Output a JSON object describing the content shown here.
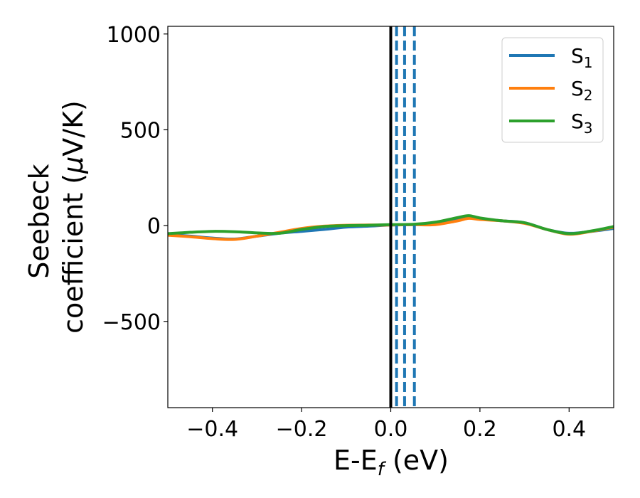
{
  "chart_data": {
    "type": "line",
    "title": "",
    "xlabel": {
      "main": "E-E",
      "sub": "f",
      "tail": " (eV)"
    },
    "ylabel": {
      "line1": "Seebeck",
      "line2_prefix": "coefficient  (",
      "line2_mu": "μ",
      "line2_suffix": "V/K)"
    },
    "xlim": [
      -0.5,
      0.5
    ],
    "ylim": [
      -950,
      1040
    ],
    "xticks": [
      -0.4,
      -0.2,
      0.0,
      0.2,
      0.4
    ],
    "xtick_labels": [
      "−0.4",
      "−0.2",
      "0.0",
      "0.2",
      "0.4"
    ],
    "yticks": [
      -500,
      0,
      500,
      1000
    ],
    "ytick_labels": [
      "−500",
      "0",
      "500",
      "1000"
    ],
    "grid": false,
    "legend_position": "top-right",
    "vertical_lines": [
      {
        "x": 0.0,
        "style": "solid",
        "color": "#000000"
      },
      {
        "x": 0.013,
        "style": "dashed",
        "color": "#1f77b4"
      },
      {
        "x": 0.031,
        "style": "dashed",
        "color": "#1f77b4"
      },
      {
        "x": 0.053,
        "style": "dashed",
        "color": "#1f77b4"
      }
    ],
    "x": [
      -0.5,
      -0.45,
      -0.4,
      -0.35,
      -0.3,
      -0.25,
      -0.2,
      -0.15,
      -0.1,
      -0.05,
      0.0,
      0.05,
      0.1,
      0.15,
      0.175,
      0.2,
      0.25,
      0.3,
      0.35,
      0.4,
      0.45,
      0.5
    ],
    "series": [
      {
        "name": "S",
        "sub": "1",
        "color": "#1f77b4",
        "values": [
          -45,
          -55,
          -65,
          -70,
          -55,
          -40,
          -30,
          -20,
          -8,
          -3,
          3,
          5,
          10,
          30,
          40,
          35,
          25,
          15,
          -20,
          -40,
          -30,
          -15
        ]
      },
      {
        "name": "S",
        "sub": "2",
        "color": "#ff7f0e",
        "values": [
          -50,
          -58,
          -68,
          -72,
          -55,
          -35,
          -15,
          -3,
          2,
          3,
          3,
          5,
          5,
          25,
          38,
          32,
          25,
          12,
          -20,
          -45,
          -30,
          -8
        ]
      },
      {
        "name": "S",
        "sub": "3",
        "color": "#2ca02c",
        "values": [
          -42,
          -35,
          -30,
          -32,
          -38,
          -40,
          -20,
          -5,
          0,
          2,
          5,
          7,
          18,
          42,
          52,
          40,
          25,
          15,
          -20,
          -42,
          -28,
          -5
        ]
      }
    ]
  }
}
